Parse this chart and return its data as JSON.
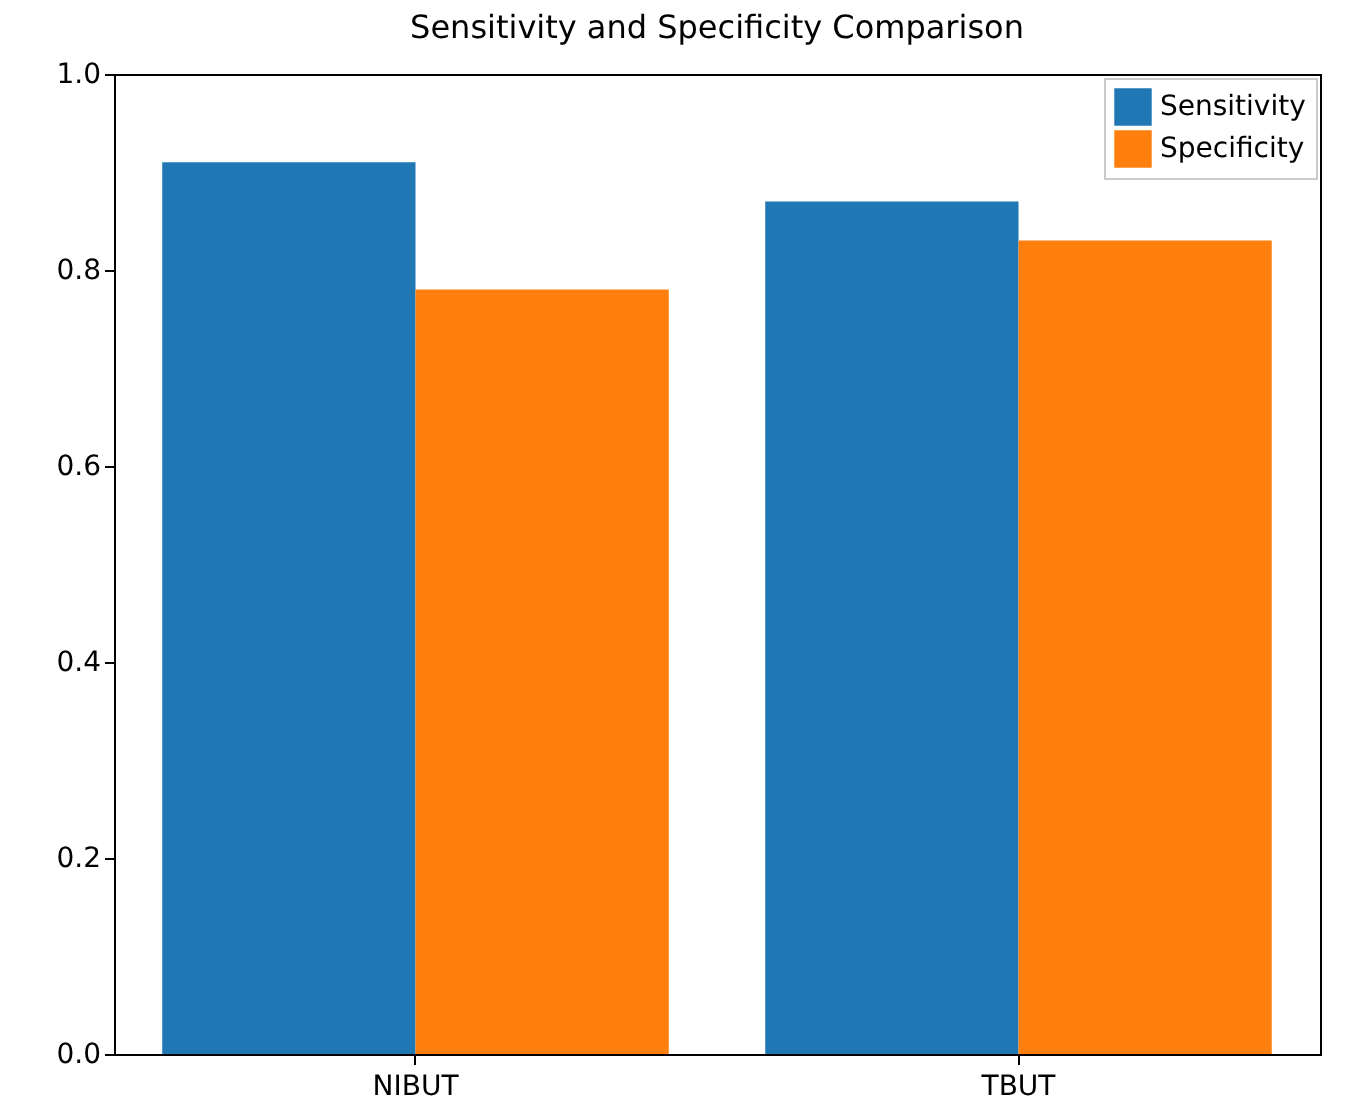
{
  "chart_data": {
    "type": "bar",
    "title": "Sensitivity and Specificity Comparison",
    "categories": [
      "NIBUT",
      "TBUT"
    ],
    "series": [
      {
        "name": "Sensitivity",
        "color": "#1f77b4",
        "values": [
          0.91,
          0.87
        ]
      },
      {
        "name": "Specificity",
        "color": "#ff7f0e",
        "values": [
          0.78,
          0.83
        ]
      }
    ],
    "ylim": [
      0,
      1.0
    ],
    "yticks": [
      {
        "value": 0,
        "label": "0.0"
      },
      {
        "value": 0.2,
        "label": "0.2"
      },
      {
        "value": 0.4,
        "label": "0.4"
      },
      {
        "value": 0.6,
        "label": "0.6"
      },
      {
        "value": 0.8,
        "label": "0.8"
      },
      {
        "value": 1.0,
        "label": "1.0"
      }
    ],
    "legend": "top right"
  }
}
